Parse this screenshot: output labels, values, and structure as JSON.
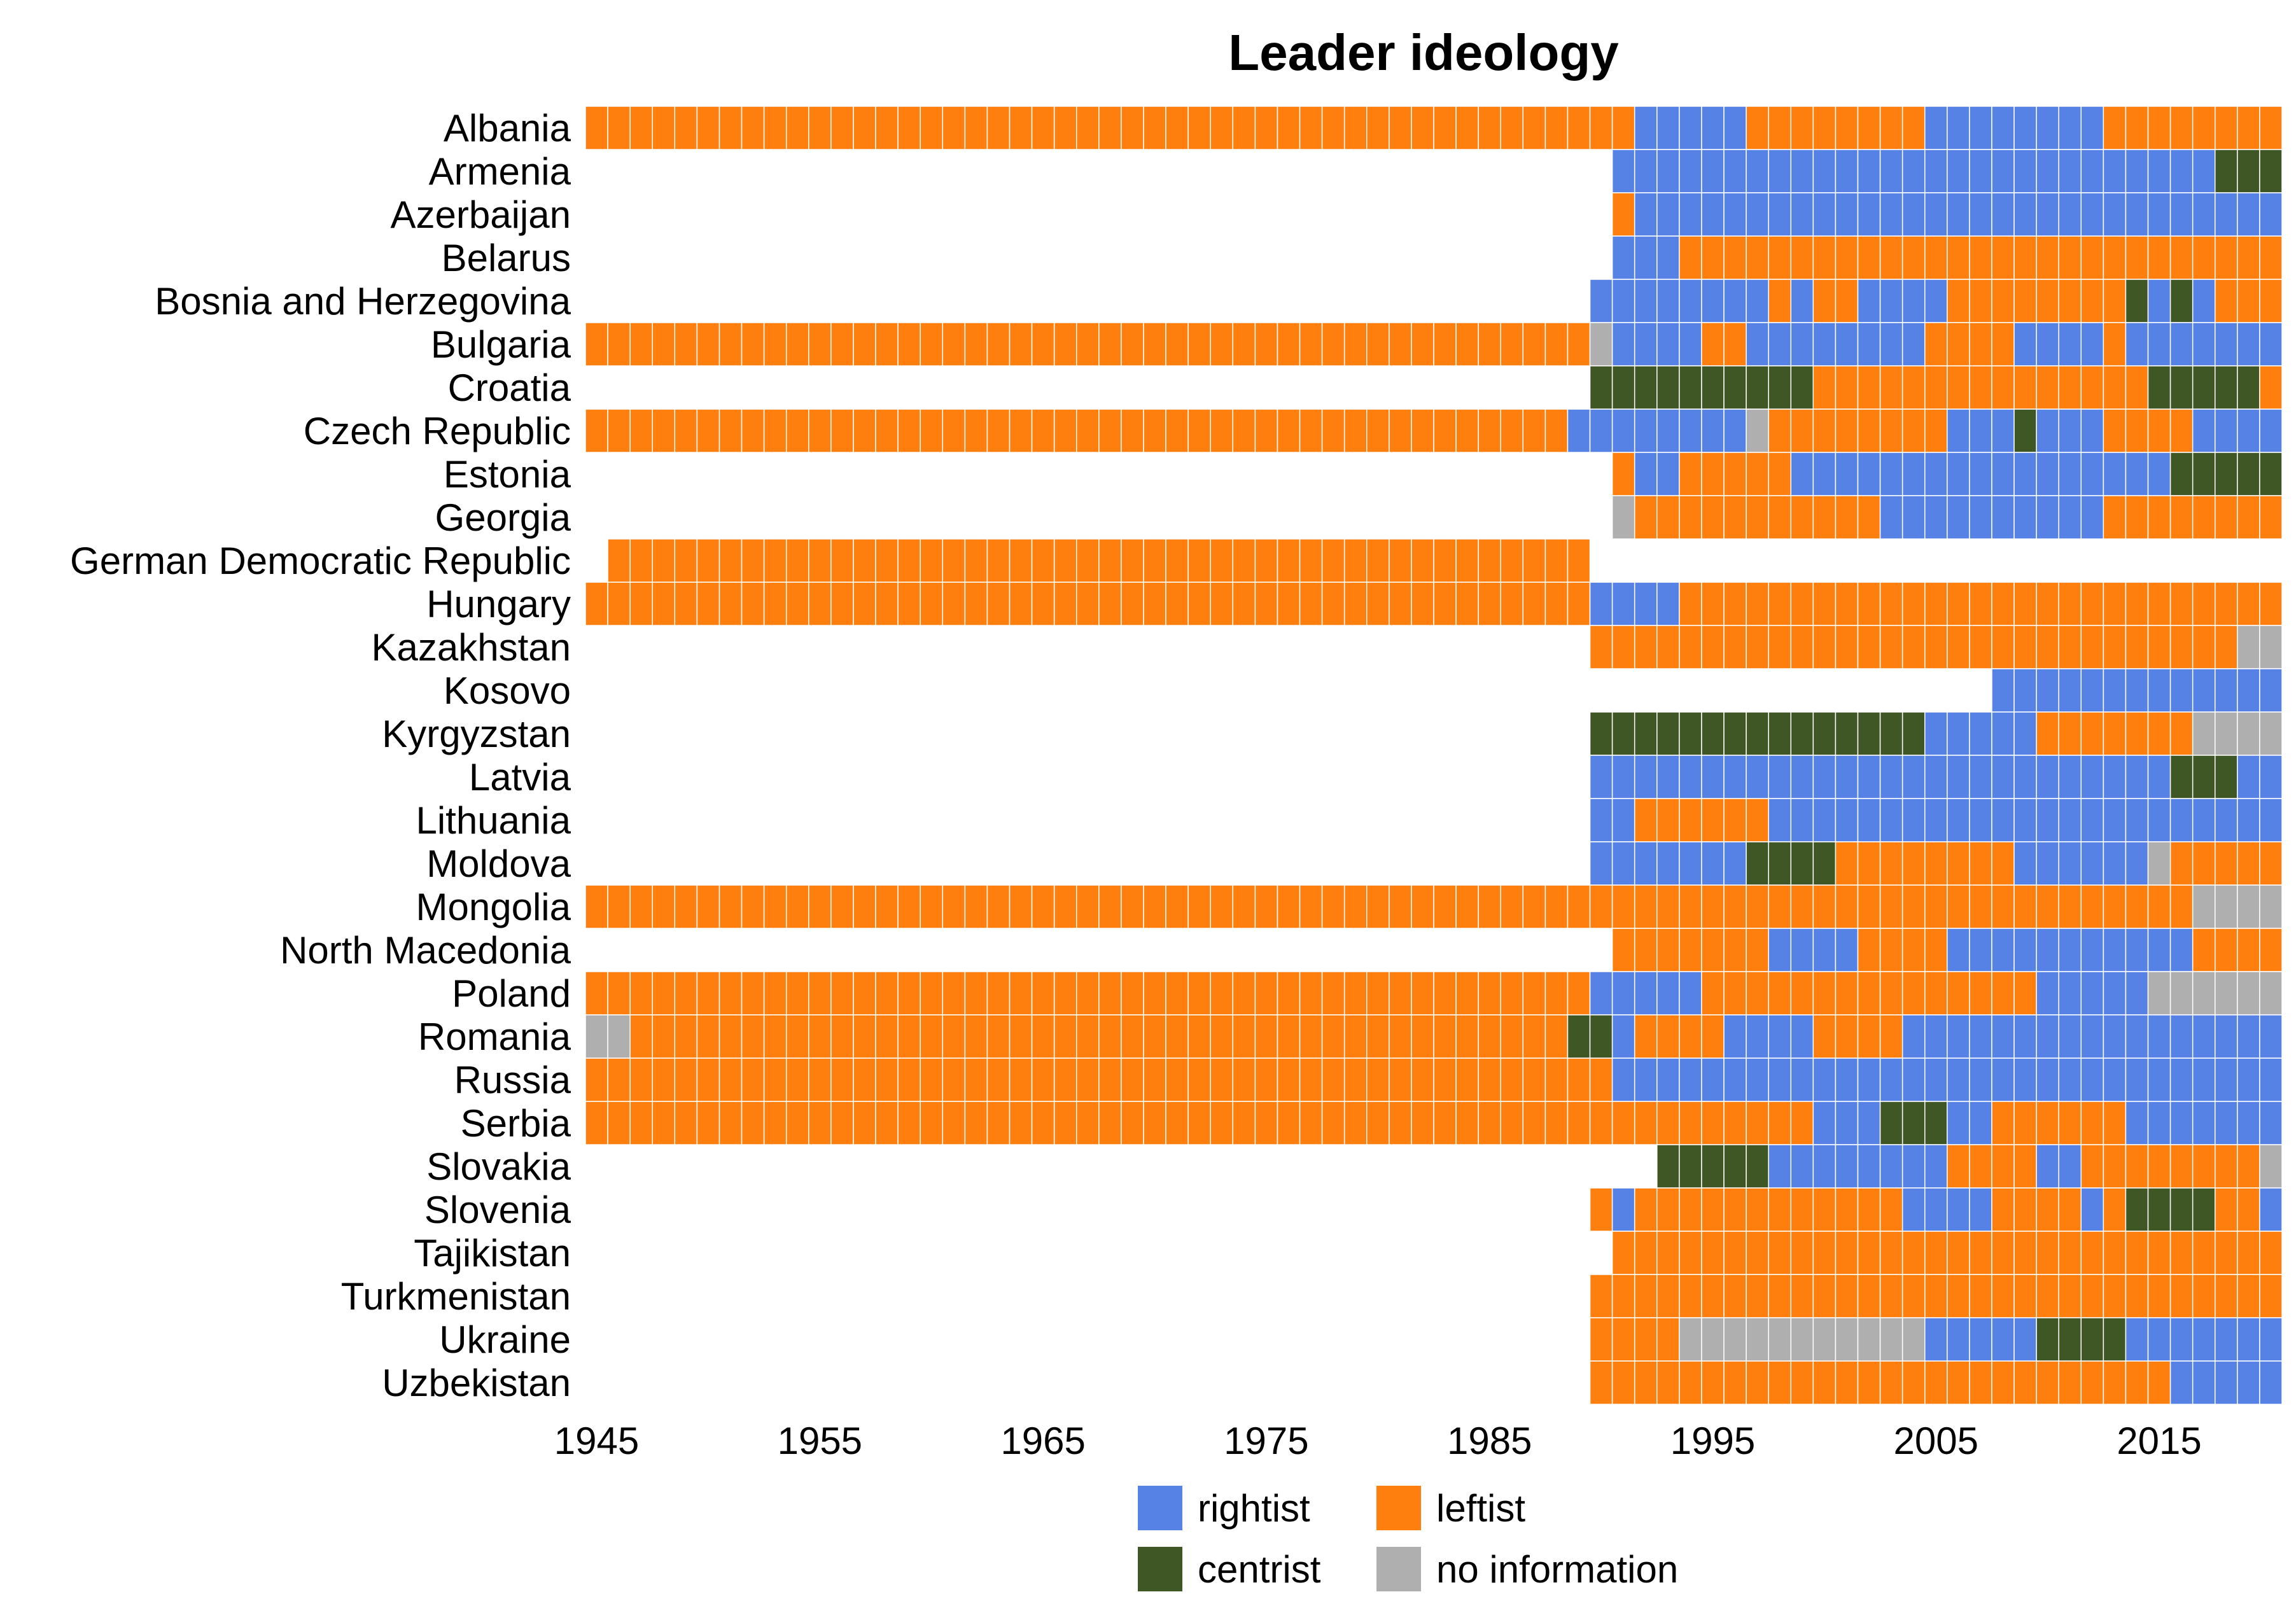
{
  "chart_data": {
    "type": "heatmap",
    "title": "Leader ideology",
    "xlabel": "",
    "ylabel": "",
    "x_range": [
      1945,
      2020
    ],
    "x_ticks": [
      1945,
      1955,
      1965,
      1975,
      1985,
      1995,
      2005,
      2015
    ],
    "grid": false,
    "legend_position": "bottom",
    "categories": [
      {
        "code": "R",
        "label": "rightist",
        "color": "#5782E5"
      },
      {
        "code": "L",
        "label": "leftist",
        "color": "#FF7F0E"
      },
      {
        "code": "C",
        "label": "centrist",
        "color": "#3F5625"
      },
      {
        "code": "N",
        "label": "no information",
        "color": "#AFAFAF"
      }
    ],
    "cell_border_color": "#ffffff",
    "series": [
      {
        "country": "Albania",
        "periods": [
          [
            1945,
            1991,
            "L"
          ],
          [
            1992,
            1996,
            "R"
          ],
          [
            1997,
            2004,
            "L"
          ],
          [
            2005,
            2012,
            "R"
          ],
          [
            2013,
            2020,
            "L"
          ]
        ]
      },
      {
        "country": "Armenia",
        "periods": [
          [
            1991,
            2017,
            "R"
          ],
          [
            2018,
            2020,
            "C"
          ]
        ]
      },
      {
        "country": "Azerbaijan",
        "periods": [
          [
            1991,
            1991,
            "L"
          ],
          [
            1992,
            2020,
            "R"
          ]
        ]
      },
      {
        "country": "Belarus",
        "periods": [
          [
            1991,
            1993,
            "R"
          ],
          [
            1994,
            2020,
            "L"
          ]
        ]
      },
      {
        "country": "Bosnia and Herzegovina",
        "periods": [
          [
            1990,
            1997,
            "R"
          ],
          [
            1998,
            1998,
            "L"
          ],
          [
            1999,
            1999,
            "R"
          ],
          [
            2000,
            2001,
            "L"
          ],
          [
            2002,
            2005,
            "R"
          ],
          [
            2006,
            2013,
            "L"
          ],
          [
            2014,
            2014,
            "C"
          ],
          [
            2015,
            2015,
            "R"
          ],
          [
            2016,
            2016,
            "C"
          ],
          [
            2017,
            2017,
            "R"
          ],
          [
            2018,
            2020,
            "L"
          ]
        ]
      },
      {
        "country": "Bulgaria",
        "periods": [
          [
            1945,
            1989,
            "L"
          ],
          [
            1990,
            1990,
            "N"
          ],
          [
            1991,
            1994,
            "R"
          ],
          [
            1995,
            1996,
            "L"
          ],
          [
            1997,
            2004,
            "R"
          ],
          [
            2005,
            2008,
            "L"
          ],
          [
            2009,
            2012,
            "R"
          ],
          [
            2013,
            2013,
            "L"
          ],
          [
            2014,
            2020,
            "R"
          ]
        ]
      },
      {
        "country": "Croatia",
        "periods": [
          [
            1990,
            1999,
            "C"
          ],
          [
            2000,
            2014,
            "L"
          ],
          [
            2015,
            2019,
            "C"
          ],
          [
            2020,
            2020,
            "L"
          ]
        ]
      },
      {
        "country": "Czech Republic",
        "periods": [
          [
            1945,
            1988,
            "L"
          ],
          [
            1989,
            1996,
            "R"
          ],
          [
            1997,
            1997,
            "N"
          ],
          [
            1998,
            2005,
            "L"
          ],
          [
            2006,
            2008,
            "R"
          ],
          [
            2009,
            2009,
            "C"
          ],
          [
            2010,
            2012,
            "R"
          ],
          [
            2013,
            2016,
            "L"
          ],
          [
            2017,
            2020,
            "R"
          ]
        ]
      },
      {
        "country": "Estonia",
        "periods": [
          [
            1991,
            1991,
            "L"
          ],
          [
            1992,
            1993,
            "R"
          ],
          [
            1994,
            1998,
            "L"
          ],
          [
            1999,
            2015,
            "R"
          ],
          [
            2016,
            2020,
            "C"
          ]
        ]
      },
      {
        "country": "Georgia",
        "periods": [
          [
            1991,
            1991,
            "N"
          ],
          [
            1992,
            2002,
            "L"
          ],
          [
            2003,
            2012,
            "R"
          ],
          [
            2013,
            2020,
            "L"
          ]
        ]
      },
      {
        "country": "German Democratic Republic",
        "periods": [
          [
            1946,
            1989,
            "L"
          ]
        ]
      },
      {
        "country": "Hungary",
        "periods": [
          [
            1945,
            1989,
            "L"
          ],
          [
            1990,
            1993,
            "R"
          ],
          [
            1994,
            2020,
            "L"
          ]
        ]
      },
      {
        "country": "Kazakhstan",
        "periods": [
          [
            1990,
            2018,
            "L"
          ],
          [
            2019,
            2020,
            "N"
          ]
        ]
      },
      {
        "country": "Kosovo",
        "periods": [
          [
            2008,
            2020,
            "R"
          ]
        ]
      },
      {
        "country": "Kyrgyzstan",
        "periods": [
          [
            1990,
            2004,
            "C"
          ],
          [
            2005,
            2009,
            "R"
          ],
          [
            2010,
            2016,
            "L"
          ],
          [
            2017,
            2020,
            "N"
          ]
        ]
      },
      {
        "country": "Latvia",
        "periods": [
          [
            1990,
            2015,
            "R"
          ],
          [
            2016,
            2018,
            "C"
          ],
          [
            2019,
            2020,
            "R"
          ]
        ]
      },
      {
        "country": "Lithuania",
        "periods": [
          [
            1990,
            1991,
            "R"
          ],
          [
            1992,
            1997,
            "L"
          ],
          [
            1998,
            2020,
            "R"
          ]
        ]
      },
      {
        "country": "Moldova",
        "periods": [
          [
            1990,
            1996,
            "R"
          ],
          [
            1997,
            2000,
            "C"
          ],
          [
            2001,
            2008,
            "L"
          ],
          [
            2009,
            2014,
            "R"
          ],
          [
            2015,
            2015,
            "N"
          ],
          [
            2016,
            2020,
            "L"
          ]
        ]
      },
      {
        "country": "Mongolia",
        "periods": [
          [
            1945,
            2016,
            "L"
          ],
          [
            2017,
            2020,
            "N"
          ]
        ]
      },
      {
        "country": "North Macedonia",
        "periods": [
          [
            1991,
            1997,
            "L"
          ],
          [
            1998,
            2001,
            "R"
          ],
          [
            2002,
            2005,
            "L"
          ],
          [
            2006,
            2016,
            "R"
          ],
          [
            2017,
            2020,
            "L"
          ]
        ]
      },
      {
        "country": "Poland",
        "periods": [
          [
            1945,
            1989,
            "L"
          ],
          [
            1990,
            1994,
            "R"
          ],
          [
            1995,
            2009,
            "L"
          ],
          [
            2010,
            2014,
            "R"
          ],
          [
            2015,
            2020,
            "N"
          ]
        ]
      },
      {
        "country": "Romania",
        "periods": [
          [
            1945,
            1946,
            "N"
          ],
          [
            1947,
            1988,
            "L"
          ],
          [
            1989,
            1990,
            "C"
          ],
          [
            1991,
            1991,
            "R"
          ],
          [
            1992,
            1995,
            "L"
          ],
          [
            1996,
            1999,
            "R"
          ],
          [
            2000,
            2003,
            "L"
          ],
          [
            2004,
            2020,
            "R"
          ]
        ]
      },
      {
        "country": "Russia",
        "periods": [
          [
            1945,
            1990,
            "L"
          ],
          [
            1991,
            2020,
            "R"
          ]
        ]
      },
      {
        "country": "Serbia",
        "periods": [
          [
            1945,
            1999,
            "L"
          ],
          [
            2000,
            2002,
            "R"
          ],
          [
            2003,
            2005,
            "C"
          ],
          [
            2006,
            2007,
            "R"
          ],
          [
            2008,
            2013,
            "L"
          ],
          [
            2014,
            2020,
            "R"
          ]
        ]
      },
      {
        "country": "Slovakia",
        "periods": [
          [
            1993,
            1997,
            "C"
          ],
          [
            1998,
            2005,
            "R"
          ],
          [
            2006,
            2009,
            "L"
          ],
          [
            2010,
            2011,
            "R"
          ],
          [
            2012,
            2019,
            "L"
          ],
          [
            2020,
            2020,
            "N"
          ]
        ]
      },
      {
        "country": "Slovenia",
        "periods": [
          [
            1990,
            1990,
            "L"
          ],
          [
            1991,
            1991,
            "R"
          ],
          [
            1992,
            2003,
            "L"
          ],
          [
            2004,
            2007,
            "R"
          ],
          [
            2008,
            2011,
            "L"
          ],
          [
            2012,
            2012,
            "R"
          ],
          [
            2013,
            2013,
            "L"
          ],
          [
            2014,
            2017,
            "C"
          ],
          [
            2018,
            2019,
            "L"
          ],
          [
            2020,
            2020,
            "R"
          ]
        ]
      },
      {
        "country": "Tajikistan",
        "periods": [
          [
            1991,
            2020,
            "L"
          ]
        ]
      },
      {
        "country": "Turkmenistan",
        "periods": [
          [
            1990,
            2020,
            "L"
          ]
        ]
      },
      {
        "country": "Ukraine",
        "periods": [
          [
            1990,
            1993,
            "L"
          ],
          [
            1994,
            2004,
            "N"
          ],
          [
            2005,
            2009,
            "R"
          ],
          [
            2010,
            2013,
            "C"
          ],
          [
            2014,
            2020,
            "R"
          ]
        ]
      },
      {
        "country": "Uzbekistan",
        "periods": [
          [
            1990,
            2015,
            "L"
          ],
          [
            2016,
            2020,
            "R"
          ]
        ]
      }
    ]
  }
}
